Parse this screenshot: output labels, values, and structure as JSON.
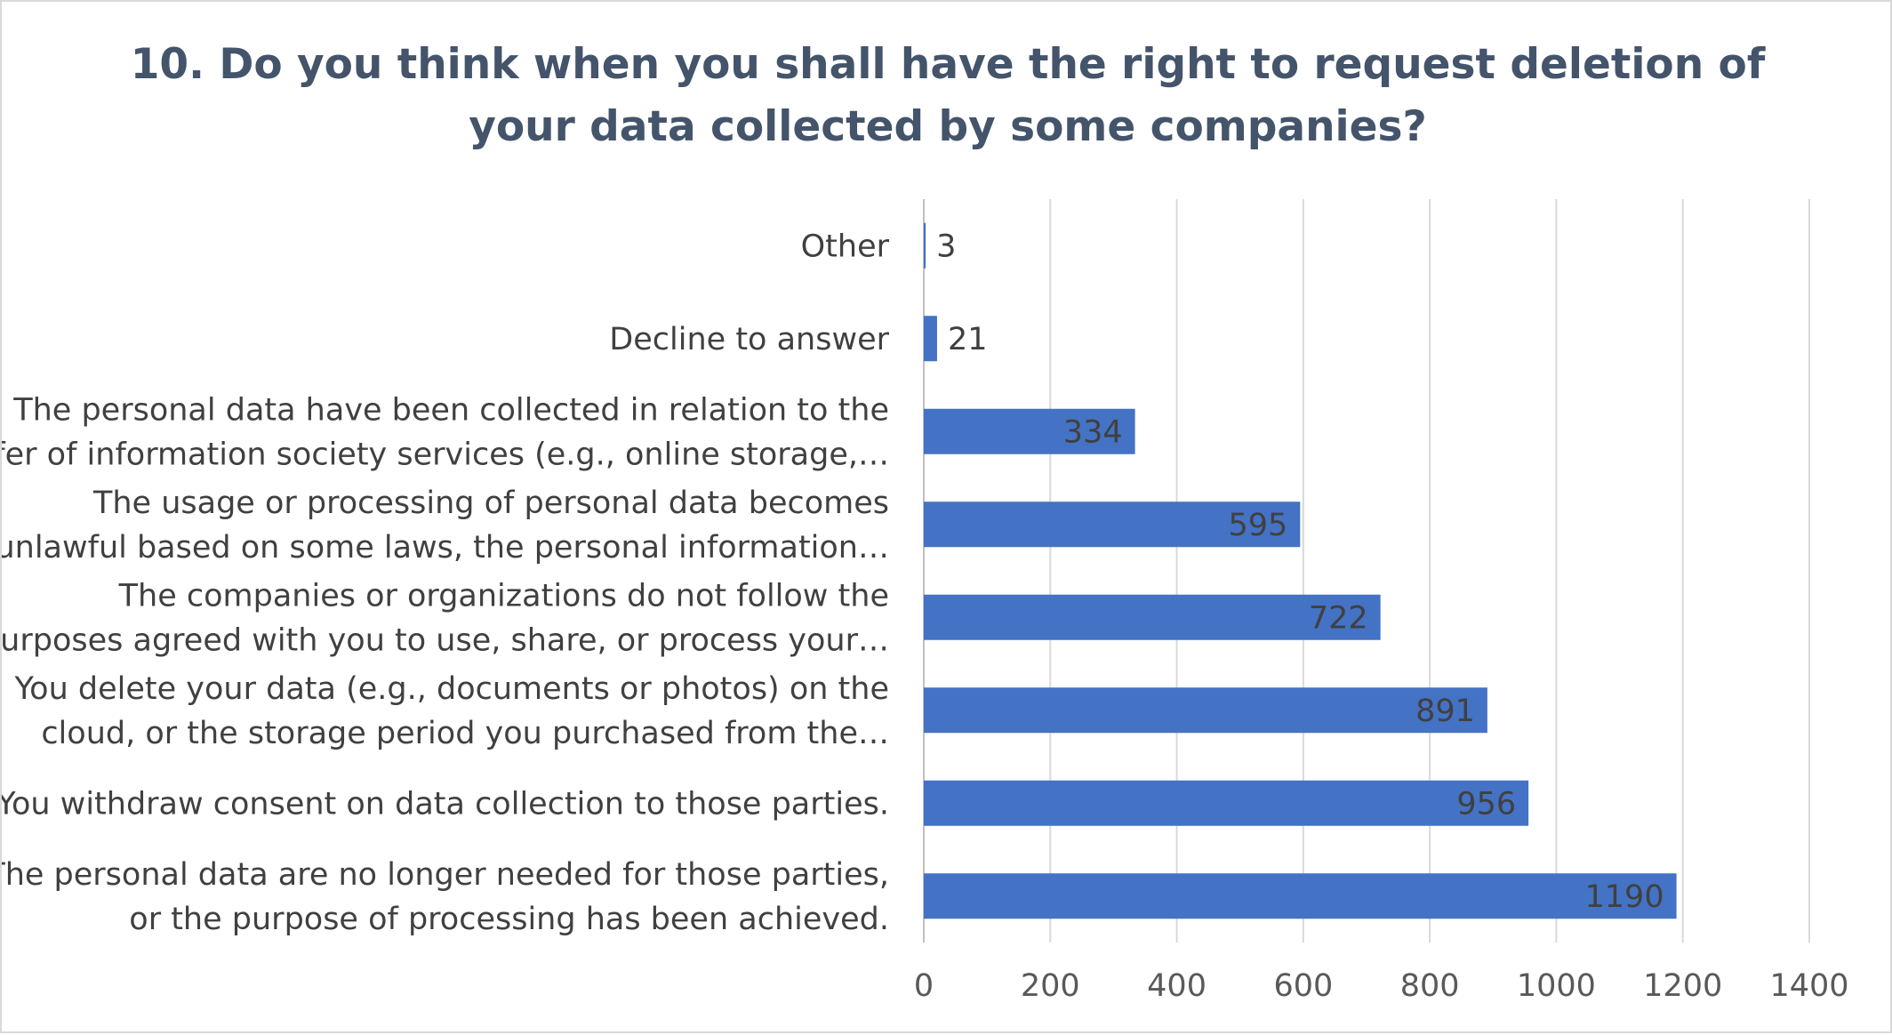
{
  "chart_data": {
    "type": "bar",
    "orientation": "horizontal",
    "title": "10. Do you think when you shall have the right to request deletion of your data collected by some companies?",
    "title_lines": [
      "10. Do you think when you shall have the right to request deletion of",
      "your data collected by some companies?"
    ],
    "xlabel": "",
    "ylabel": "",
    "xlim": [
      0,
      1400
    ],
    "x_ticks": [
      "0",
      "200",
      "400",
      "600",
      "800",
      "1000",
      "1200",
      "1400"
    ],
    "grid": true,
    "legend": "none",
    "bar_color": "#4472c4",
    "categories": [
      {
        "lines": [
          "Other"
        ],
        "value": 3,
        "label": "3"
      },
      {
        "lines": [
          "Decline to answer"
        ],
        "value": 21,
        "label": "21"
      },
      {
        "lines": [
          "The personal data have been collected in relation to the",
          "offer of information society services (e.g., online storage,…"
        ],
        "value": 334,
        "label": "334"
      },
      {
        "lines": [
          "The usage or processing of personal data becomes",
          "unlawful based on some laws, the personal information…"
        ],
        "value": 595,
        "label": "595"
      },
      {
        "lines": [
          "The companies or organizations do not follow the",
          "purposes agreed with you to use, share, or process your…"
        ],
        "value": 722,
        "label": "722"
      },
      {
        "lines": [
          "You delete your data (e.g., documents or photos) on the",
          "cloud, or the storage period you purchased from the…"
        ],
        "value": 891,
        "label": "891"
      },
      {
        "lines": [
          "You withdraw consent on data collection to those parties."
        ],
        "value": 956,
        "label": "956"
      },
      {
        "lines": [
          "The personal data are no longer needed for those parties,",
          "or the purpose of processing has been achieved."
        ],
        "value": 1190,
        "label": "1190"
      }
    ]
  }
}
